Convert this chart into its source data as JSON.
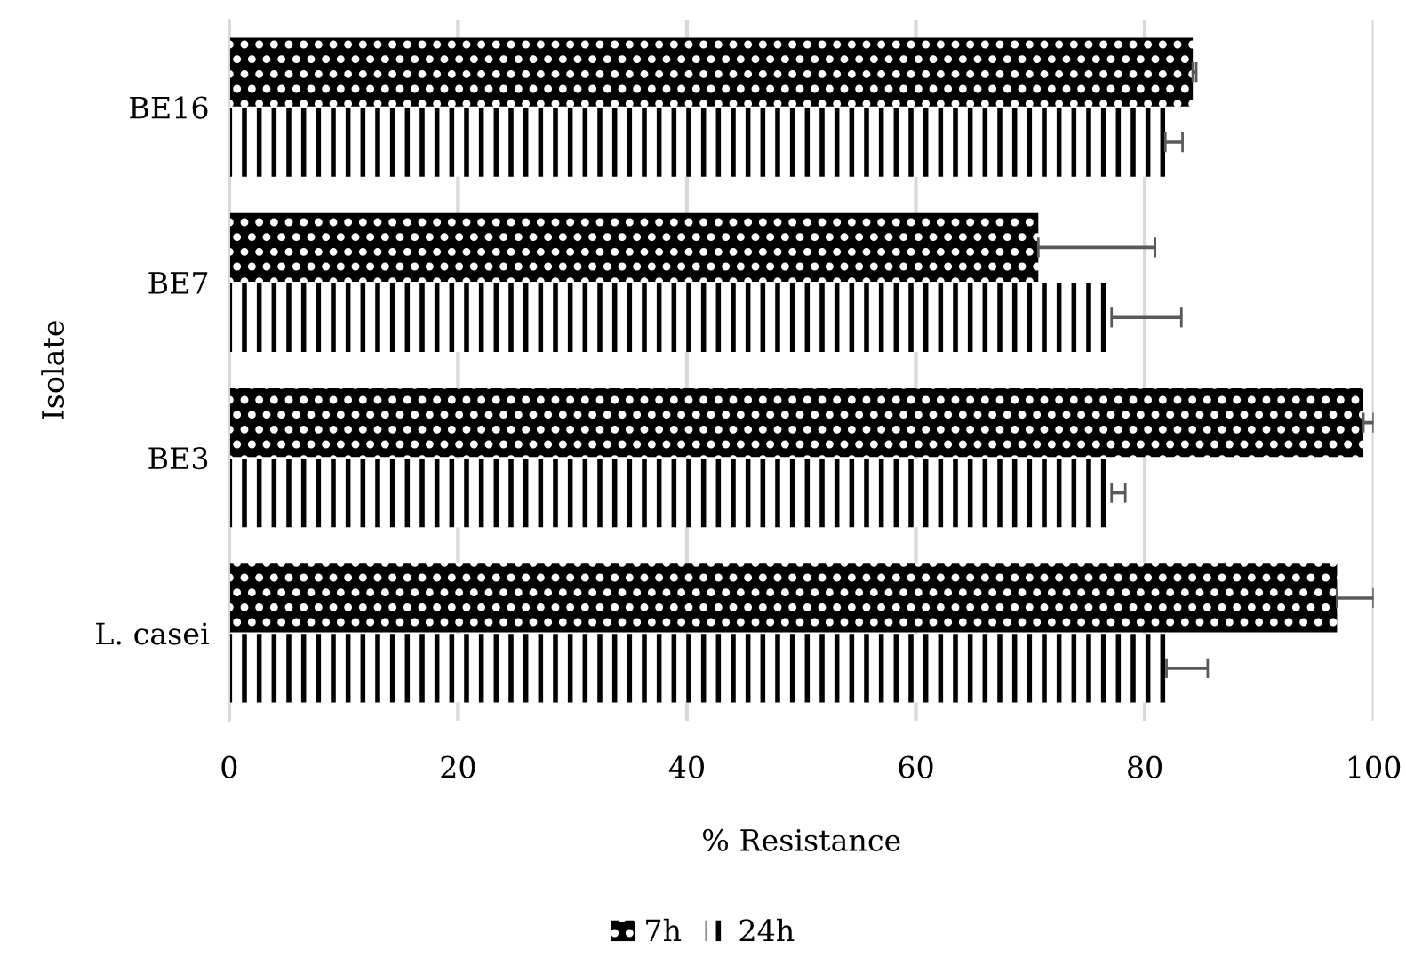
{
  "chart_data": {
    "type": "bar",
    "orientation": "horizontal",
    "xlabel": "% Resistance",
    "ylabel": "Isolate",
    "categories": [
      "BE16",
      "BE7",
      "BE3",
      "L. casei"
    ],
    "series": [
      {
        "name": "7h",
        "color": "#000000",
        "values": [
          84.2,
          70.7,
          99.1,
          96.8
        ],
        "errors": [
          [
            84.2,
            84.5
          ],
          [
            70.7,
            80.9
          ],
          [
            99.1,
            100
          ],
          [
            96.8,
            100
          ]
        ]
      },
      {
        "name": "24h",
        "color": "#000000",
        "values": [
          81.8,
          77.1,
          77.1,
          81.9
        ],
        "errors": [
          [
            81.8,
            83.3
          ],
          [
            77.1,
            83.2
          ],
          [
            77.1,
            78.3
          ],
          [
            81.9,
            85.5
          ]
        ]
      }
    ],
    "xlim": [
      0,
      100
    ],
    "xticks": [
      0,
      20,
      40,
      60,
      80,
      100
    ],
    "grid": "x",
    "legend": "bottom"
  }
}
